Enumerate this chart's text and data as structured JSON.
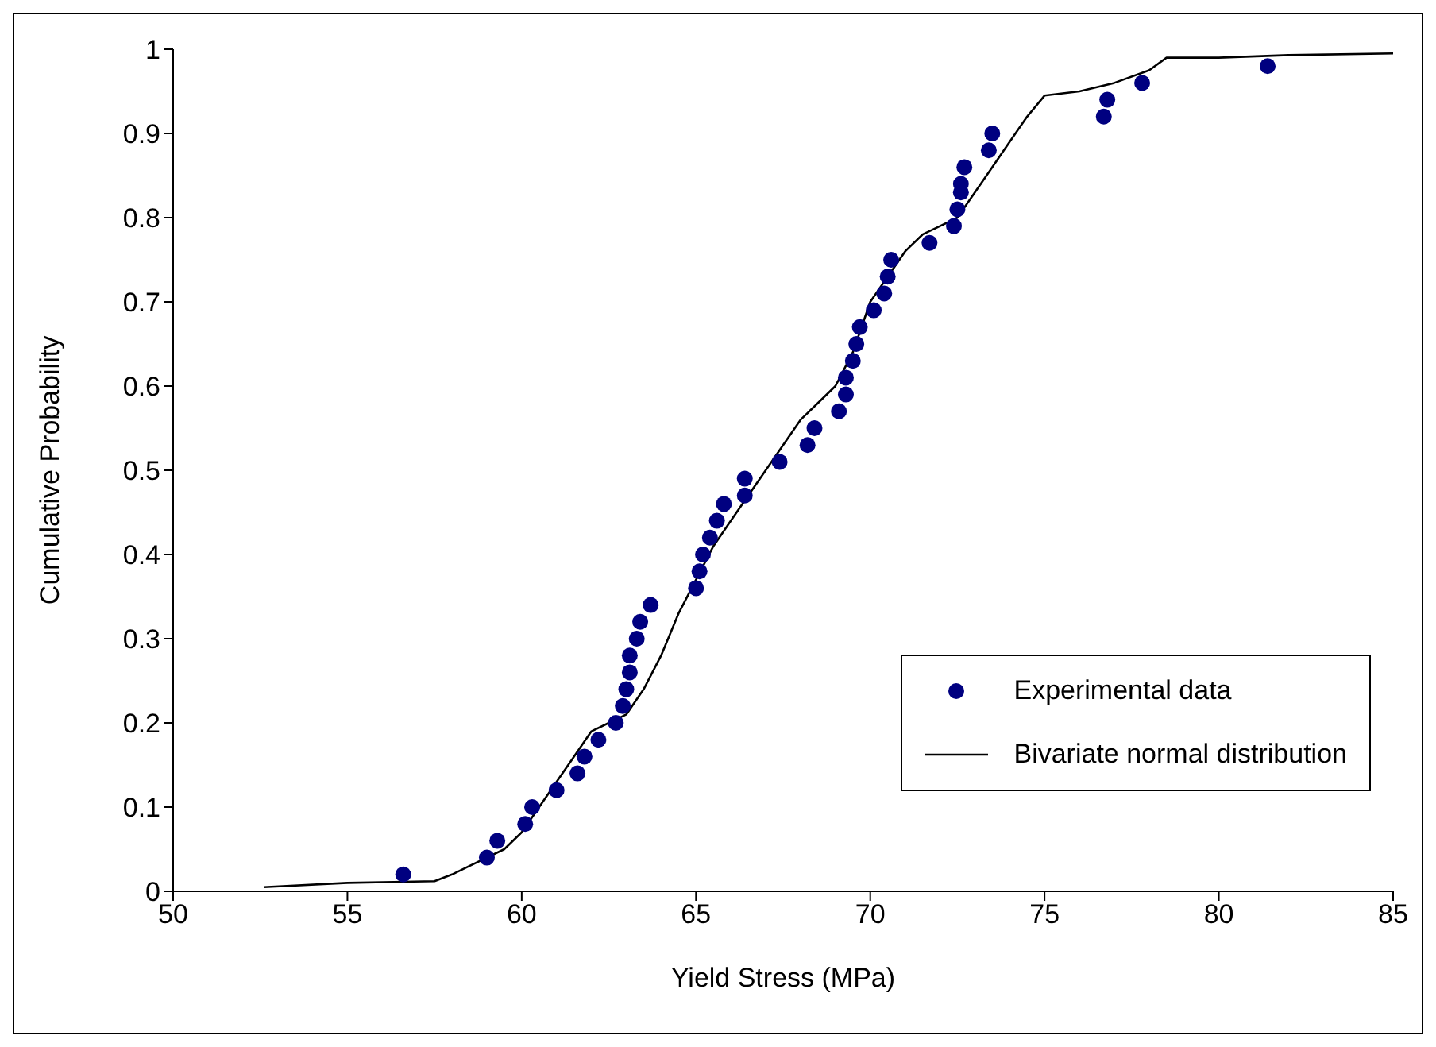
{
  "chart_data": {
    "type": "scatter",
    "xlabel": "Yield Stress (MPa)",
    "ylabel": "Cumulative Probability",
    "xlim": [
      50,
      85
    ],
    "xticks": [
      50,
      55,
      60,
      65,
      70,
      75,
      80,
      85
    ],
    "ylim": [
      0,
      1
    ],
    "yticks": [
      0,
      0.1,
      0.2,
      0.3,
      0.4,
      0.5,
      0.6,
      0.7,
      0.8,
      0.9,
      1
    ],
    "grid": false,
    "legend": "bottom right",
    "series": [
      {
        "name": "Experimental data",
        "marker": "circle",
        "color": "#000080",
        "x": [
          56.6,
          59.0,
          59.3,
          60.1,
          60.3,
          61.0,
          61.6,
          61.8,
          62.2,
          62.7,
          62.9,
          63.0,
          63.1,
          63.1,
          63.3,
          63.4,
          63.7,
          65.0,
          65.1,
          65.2,
          65.4,
          65.6,
          65.8,
          66.4,
          66.4,
          67.4,
          68.2,
          68.4,
          69.1,
          69.3,
          69.3,
          69.5,
          69.6,
          69.7,
          70.1,
          70.4,
          70.5,
          70.6,
          71.7,
          72.4,
          72.5,
          72.6,
          72.6,
          72.7,
          73.4,
          73.5,
          76.7,
          76.8,
          77.8,
          81.4
        ],
        "values": [
          0.02,
          0.04,
          0.06,
          0.08,
          0.1,
          0.12,
          0.14,
          0.16,
          0.18,
          0.2,
          0.22,
          0.24,
          0.26,
          0.28,
          0.3,
          0.32,
          0.34,
          0.36,
          0.38,
          0.4,
          0.42,
          0.44,
          0.46,
          0.47,
          0.49,
          0.51,
          0.53,
          0.55,
          0.57,
          0.59,
          0.61,
          0.63,
          0.65,
          0.67,
          0.69,
          0.71,
          0.73,
          0.75,
          0.77,
          0.79,
          0.81,
          0.83,
          0.84,
          0.86,
          0.88,
          0.9,
          0.92,
          0.94,
          0.96,
          0.98
        ]
      },
      {
        "name": "Bivariate normal distribution",
        "type": "line",
        "marker": "none",
        "line_style": "solid",
        "color": "#000000",
        "x": [
          52.6,
          55,
          57.5,
          58,
          58.5,
          59.5,
          60,
          60.5,
          61,
          61.5,
          62,
          62.5,
          63,
          63.5,
          64,
          64.5,
          65,
          65.5,
          66,
          66.5,
          67,
          67.5,
          68,
          68.5,
          69,
          69.5,
          70,
          70.5,
          71,
          71.5,
          72,
          72.5,
          73,
          73.5,
          74,
          74.5,
          75,
          76,
          77,
          78,
          78.5,
          80,
          82,
          85
        ],
        "values": [
          0.005,
          0.01,
          0.012,
          0.02,
          0.03,
          0.05,
          0.07,
          0.1,
          0.13,
          0.16,
          0.19,
          0.2,
          0.21,
          0.24,
          0.28,
          0.33,
          0.37,
          0.41,
          0.44,
          0.47,
          0.5,
          0.53,
          0.56,
          0.58,
          0.6,
          0.64,
          0.7,
          0.73,
          0.76,
          0.78,
          0.79,
          0.8,
          0.83,
          0.86,
          0.89,
          0.92,
          0.945,
          0.95,
          0.96,
          0.975,
          0.99,
          0.99,
          0.993,
          0.995
        ]
      }
    ]
  }
}
